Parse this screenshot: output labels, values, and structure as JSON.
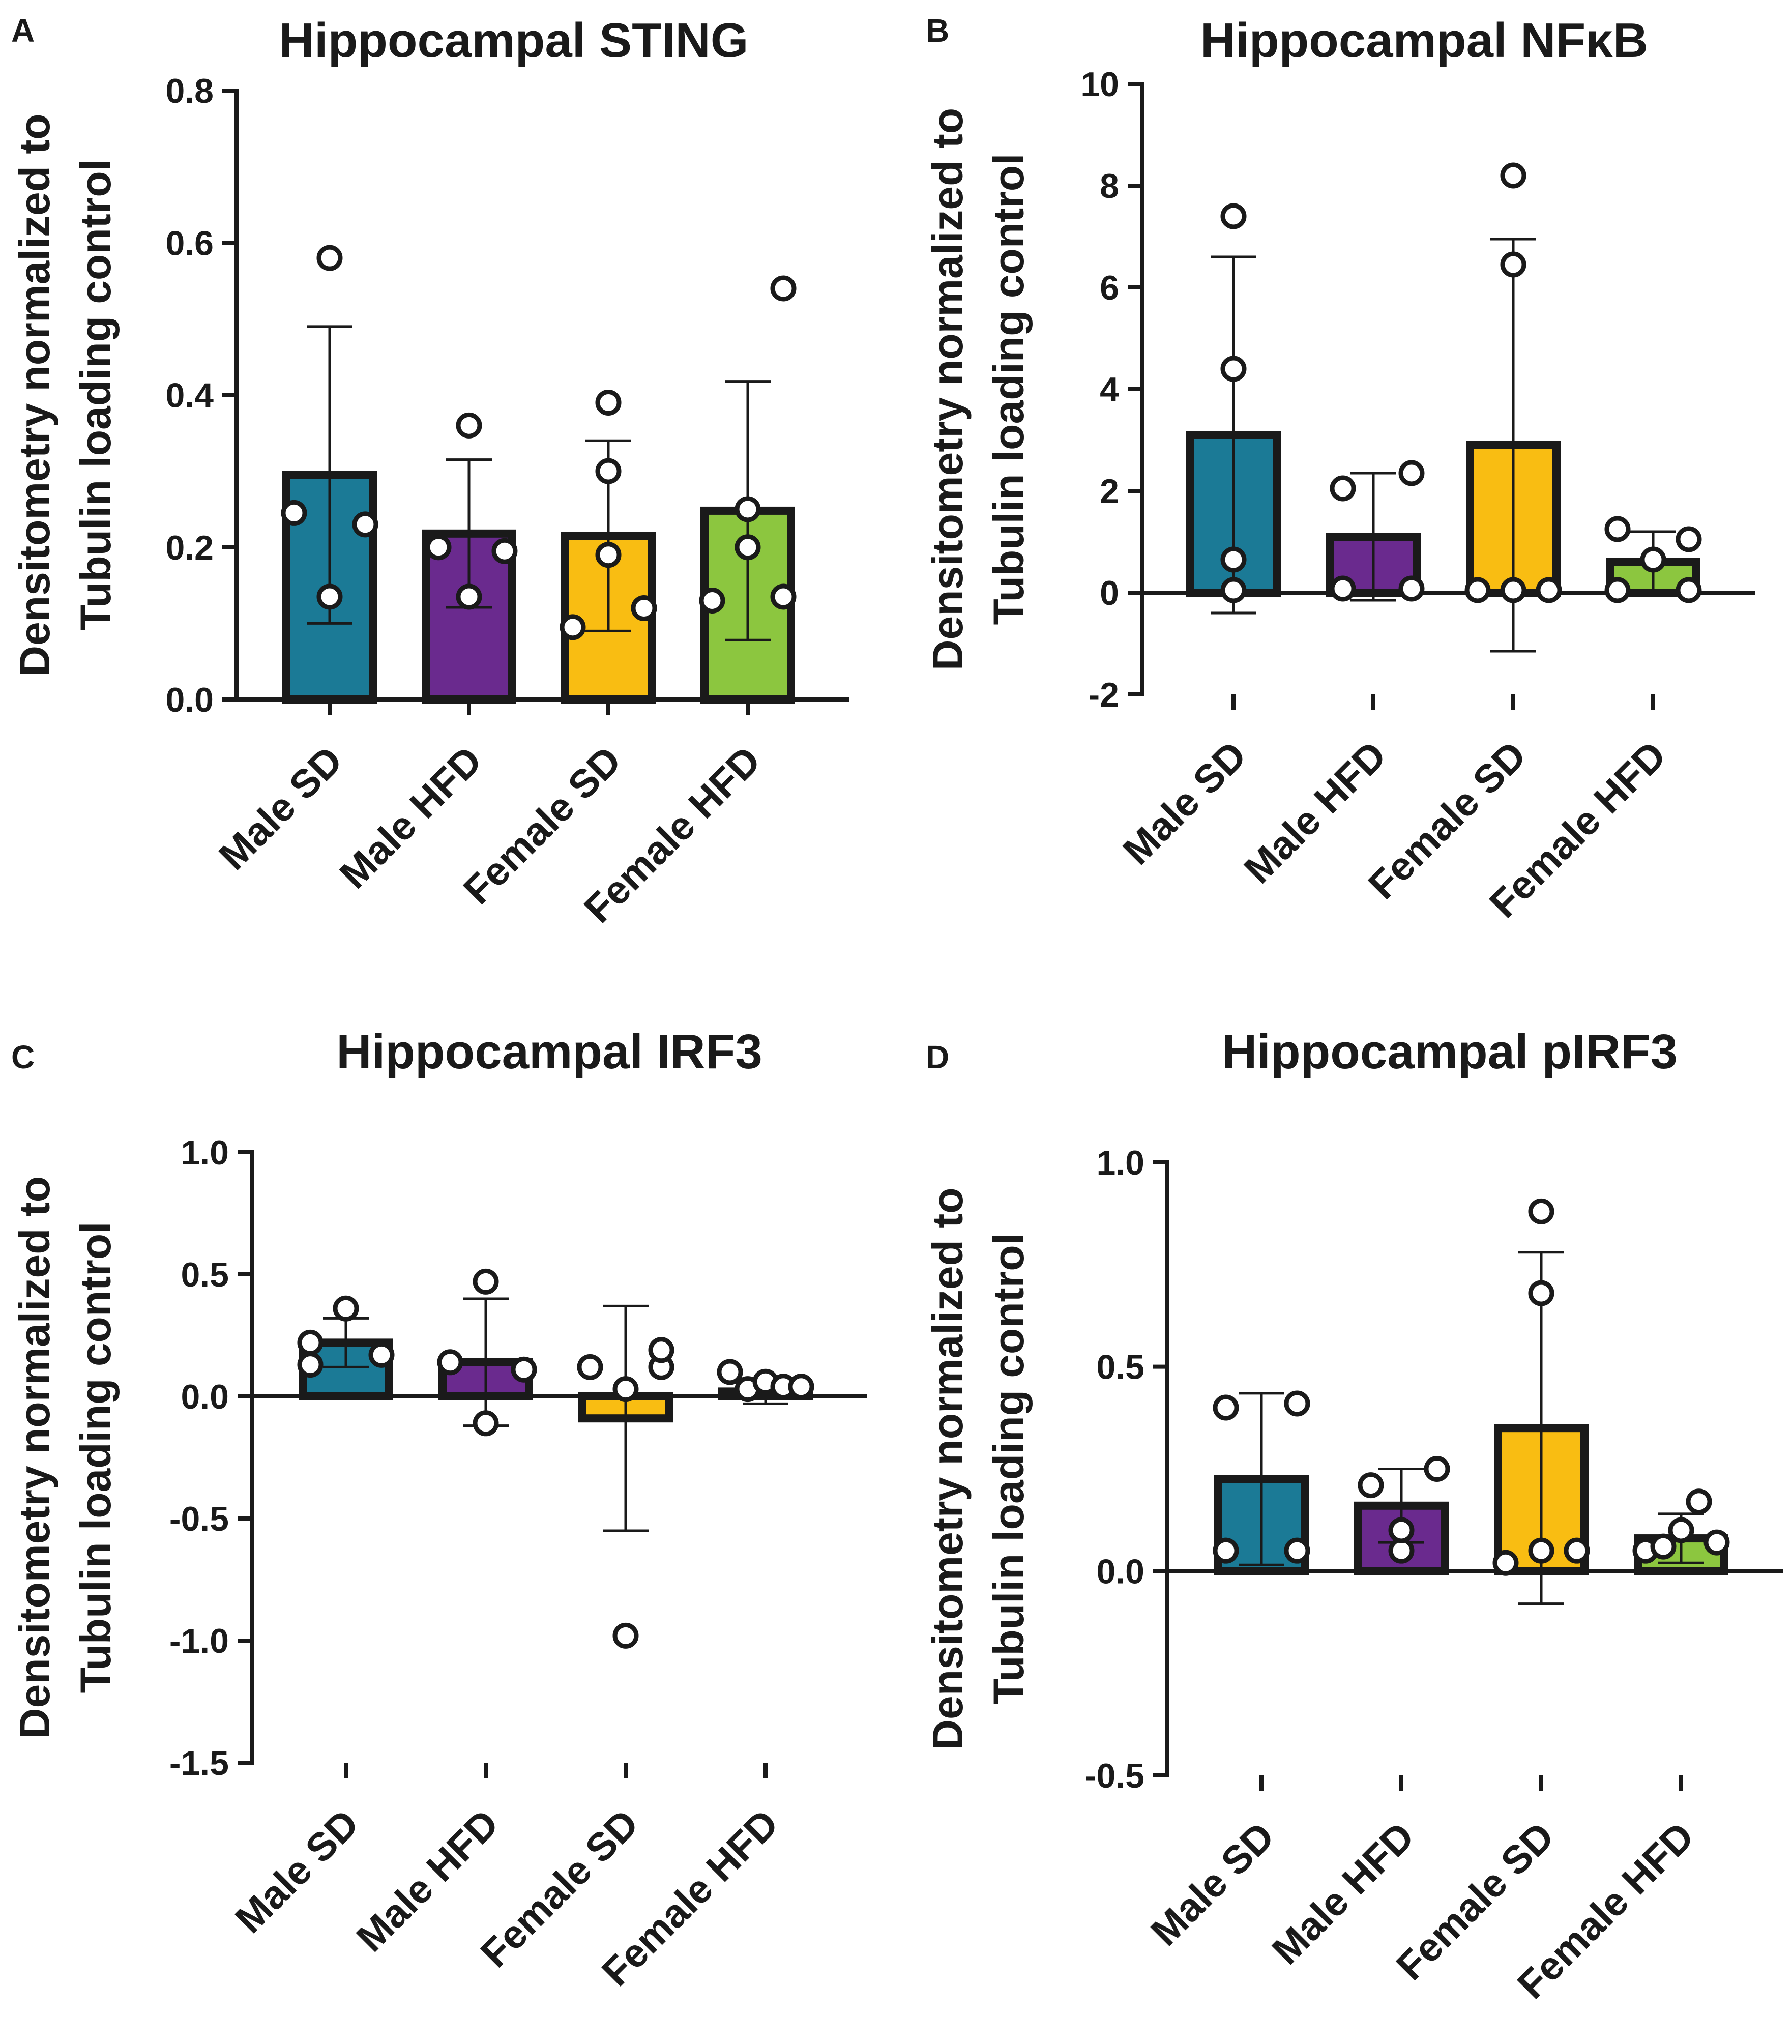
{
  "colors": {
    "axis": "#1a1a1a",
    "male_sd": "#1b7a96",
    "male_hfd": "#6a2a8e",
    "female_sd": "#f9bd12",
    "female_hfd": "#8cc63f",
    "point_fill": "#ffffff"
  },
  "chart_data": [
    {
      "panel": "A",
      "type": "bar",
      "title": "Hippocampal STING",
      "ylabel_lines": [
        "Densitometry normalized to",
        "Tubulin loading control"
      ],
      "xlabel": "",
      "categories": [
        "Male SD",
        "Male HFD",
        "Female SD",
        "Female HFD"
      ],
      "values": [
        0.295,
        0.218,
        0.215,
        0.248
      ],
      "sd": [
        0.195,
        0.097,
        0.125,
        0.17
      ],
      "points": [
        [
          0.245,
          0.58,
          0.23,
          0.135
        ],
        [
          0.2,
          0.36,
          0.195,
          0.135
        ],
        [
          0.095,
          0.39,
          0.3,
          0.19,
          0.12
        ],
        [
          0.13,
          0.25,
          0.2,
          0.54,
          0.135
        ]
      ],
      "ylim": [
        0,
        0.8
      ],
      "yticks": [
        0.0,
        0.2,
        0.4,
        0.6,
        0.8
      ],
      "ytick_labels": [
        "0.0",
        "0.2",
        "0.4",
        "0.6",
        "0.8"
      ]
    },
    {
      "panel": "B",
      "type": "bar",
      "title": "Hippocampal NFκB",
      "ylabel_lines": [
        "Densitometry normalized to",
        "Tubulin loading control"
      ],
      "xlabel": "",
      "categories": [
        "Male SD",
        "Male HFD",
        "Female SD",
        "Female HFD"
      ],
      "values": [
        3.1,
        1.1,
        2.9,
        0.6
      ],
      "sd": [
        3.5,
        1.25,
        4.05,
        0.6
      ],
      "points": [
        [
          7.4,
          4.4,
          0.65,
          0.05
        ],
        [
          2.05,
          0.08,
          2.35,
          0.08
        ],
        [
          8.2,
          6.45,
          0.05,
          0.05,
          0.05
        ],
        [
          1.25,
          0.05,
          0.65,
          1.05,
          0.05
        ]
      ],
      "ylim": [
        -2,
        10
      ],
      "yticks": [
        -2,
        0,
        2,
        4,
        6,
        8,
        10
      ],
      "ytick_labels": [
        "-2",
        "0",
        "2",
        "4",
        "6",
        "8",
        "10"
      ]
    },
    {
      "panel": "C",
      "type": "bar",
      "title": "Hippocampal IRF3",
      "ylabel_lines": [
        "Densitometry normalized to",
        "Tubulin loading control"
      ],
      "xlabel": "",
      "categories": [
        "Male SD",
        "Male HFD",
        "Female SD",
        "Female HFD"
      ],
      "values": [
        0.22,
        0.14,
        -0.09,
        0.02
      ],
      "sd": [
        0.1,
        0.26,
        0.46,
        0.05
      ],
      "points": [
        [
          0.13,
          0.22,
          0.36,
          0.17
        ],
        [
          0.14,
          0.47,
          -0.11,
          0.11
        ],
        [
          0.12,
          0.03,
          -0.98,
          0.12,
          0.19
        ],
        [
          0.1,
          0.03,
          0.06,
          0.04,
          0.04
        ]
      ],
      "ylim": [
        -1.5,
        1.0
      ],
      "yticks": [
        -1.5,
        -1.0,
        -0.5,
        0.0,
        0.5,
        1.0
      ],
      "ytick_labels": [
        "-1.5",
        "-1.0",
        "-0.5",
        "0.0",
        "0.5",
        "1.0"
      ]
    },
    {
      "panel": "D",
      "type": "bar",
      "title": "Hippocampal pIRF3",
      "ylabel_lines": [
        "Densitometry normalized to",
        "Tubulin loading control"
      ],
      "xlabel": "",
      "categories": [
        "Male SD",
        "Male HFD",
        "Female SD",
        "Female HFD"
      ],
      "values": [
        0.225,
        0.16,
        0.35,
        0.08
      ],
      "sd": [
        0.21,
        0.09,
        0.43,
        0.06
      ],
      "points": [
        [
          0.05,
          0.4,
          0.41,
          0.05
        ],
        [
          0.21,
          0.05,
          0.25,
          0.1
        ],
        [
          0.02,
          0.68,
          0.88,
          0.05,
          0.05
        ],
        [
          0.05,
          0.06,
          0.1,
          0.17,
          0.07
        ]
      ],
      "ylim": [
        -0.5,
        1.0
      ],
      "yticks": [
        -0.5,
        0.0,
        0.5,
        1.0
      ],
      "ytick_labels": [
        "-0.5",
        "0.0",
        "0.5",
        "1.0"
      ]
    }
  ]
}
